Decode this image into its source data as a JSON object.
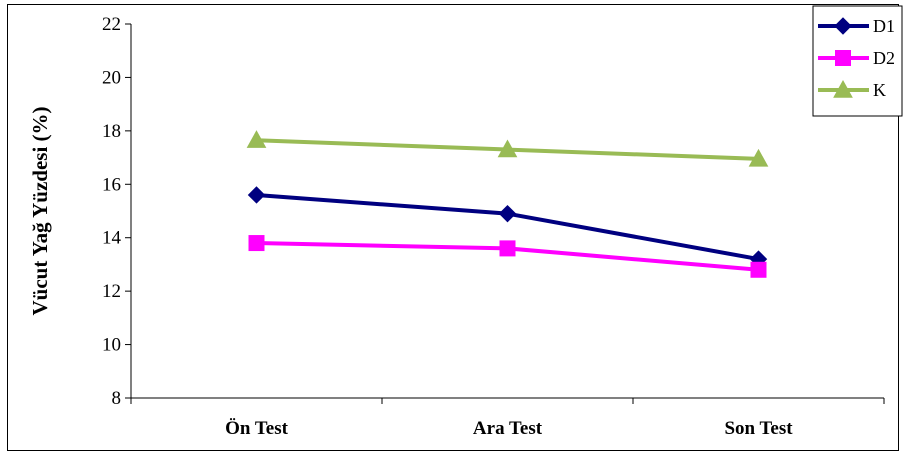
{
  "chart_data": {
    "type": "line",
    "title": "",
    "xlabel": "",
    "ylabel": "Vücut Yağ  Yüzdesi (%)",
    "categories": [
      "Ön Test",
      "Ara Test",
      "Son Test"
    ],
    "ylim": [
      8,
      22
    ],
    "yticks": [
      8,
      10,
      12,
      14,
      16,
      18,
      20,
      22
    ],
    "grid": false,
    "legend_position": "top-right",
    "series": [
      {
        "name": "D1",
        "values": [
          15.6,
          14.9,
          13.2
        ],
        "color": "#000080",
        "marker": "diamond"
      },
      {
        "name": "D2",
        "values": [
          13.8,
          13.6,
          12.8
        ],
        "color": "#FF00FF",
        "marker": "square"
      },
      {
        "name": "K",
        "values": [
          17.65,
          17.3,
          16.95
        ],
        "color": "#99BB55",
        "marker": "triangle"
      }
    ]
  }
}
